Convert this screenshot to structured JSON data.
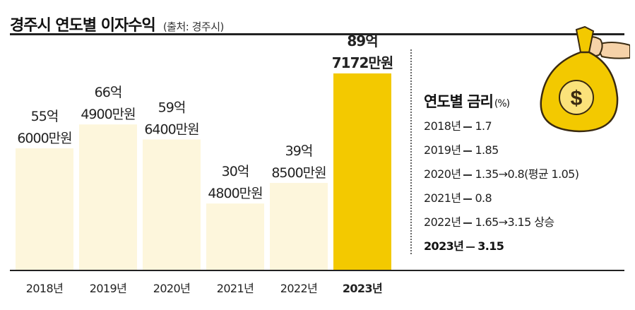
{
  "header": {
    "title": "경주시 연도별 이자수익",
    "source": "(출처: 경주시)"
  },
  "chart_data": {
    "type": "bar",
    "categories": [
      "2018년",
      "2019년",
      "2020년",
      "2021년",
      "2022년",
      "2023년"
    ],
    "values": [
      556000,
      664900,
      596400,
      304800,
      398500,
      897172
    ],
    "value_labels": [
      [
        "55억",
        "6000만원"
      ],
      [
        "66억",
        "4900만원"
      ],
      [
        "59억",
        "6400만원"
      ],
      [
        "30억",
        "4800만원"
      ],
      [
        "39억",
        "8500만원"
      ],
      [
        "89억",
        "7172만원"
      ]
    ],
    "ylim": [
      0,
      1000000
    ],
    "highlight_index": 5,
    "colors": {
      "bar": "#fdf6dc",
      "highlight": "#f3c900",
      "axis": "#222222"
    }
  },
  "rates": {
    "title": "연도별 금리",
    "unit": "(%)",
    "items": [
      {
        "year": "2018년",
        "value": "1.7"
      },
      {
        "year": "2019년",
        "value": "1.85"
      },
      {
        "year": "2020년",
        "value": "1.35→0.8(평균 1.05)"
      },
      {
        "year": "2021년",
        "value": "0.8"
      },
      {
        "year": "2022년",
        "value": "1.65→3.15 상승"
      },
      {
        "year": "2023년",
        "value": "3.15"
      }
    ]
  },
  "illustration": {
    "icon": "money-bag-icon",
    "symbol": "$"
  }
}
